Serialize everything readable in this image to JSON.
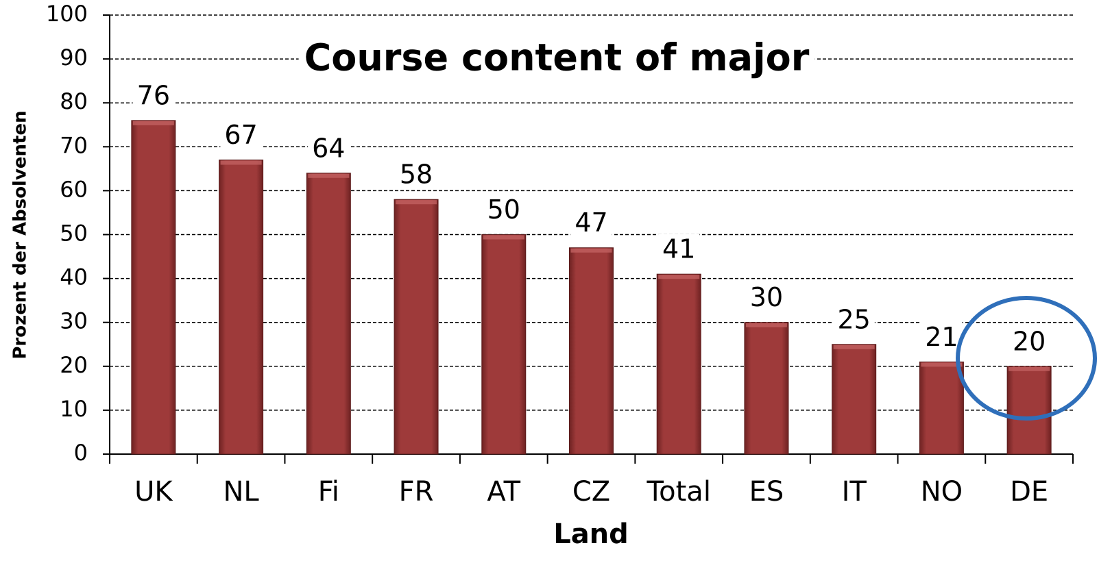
{
  "chart_data": {
    "type": "bar",
    "title": "Course content of major",
    "x_label": "Land",
    "y_label": "Prozent der Absolventen",
    "categories": [
      "UK",
      "NL",
      "Fi",
      "FR",
      "AT",
      "CZ",
      "Total",
      "ES",
      "IT",
      "NO",
      "DE"
    ],
    "values": [
      76,
      67,
      64,
      58,
      50,
      47,
      41,
      30,
      25,
      21,
      20
    ],
    "color": "#9e3a3a",
    "ylim": [
      0,
      100
    ],
    "yticks": [
      0,
      10,
      20,
      30,
      40,
      50,
      60,
      70,
      80,
      90,
      100
    ],
    "grid": true
  }
}
